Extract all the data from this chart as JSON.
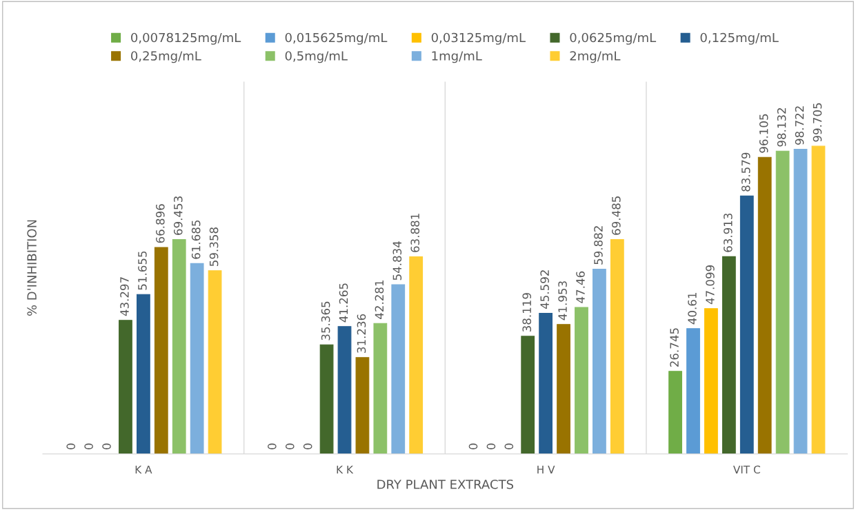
{
  "chart_data": {
    "type": "bar",
    "xlabel": "DRY PLANT EXTRACTS",
    "ylabel": "% D'INHIBITION",
    "categories": [
      "K A",
      "K K",
      "H V",
      "VIT C"
    ],
    "series": [
      {
        "name": "0,0078125mg/mL",
        "color": "#70ad47",
        "values": [
          0,
          0,
          0,
          26.745
        ]
      },
      {
        "name": "0,015625mg/mL",
        "color": "#5b9bd5",
        "values": [
          0,
          0,
          0,
          40.61
        ]
      },
      {
        "name": "0,03125mg/mL",
        "color": "#ffc000",
        "values": [
          0,
          0,
          0,
          47.099
        ]
      },
      {
        "name": "0,0625mg/mL",
        "color": "#43682b",
        "values": [
          43.297,
          35.365,
          38.119,
          63.913
        ]
      },
      {
        "name": "0,125mg/mL",
        "color": "#255e91",
        "values": [
          51.655,
          41.265,
          45.592,
          83.579
        ]
      },
      {
        "name": "0,25mg/mL",
        "color": "#997300",
        "values": [
          66.896,
          31.236,
          41.953,
          96.105
        ]
      },
      {
        "name": "0,5mg/mL",
        "color": "#8cc168",
        "values": [
          69.453,
          42.281,
          47.46,
          98.132
        ]
      },
      {
        "name": "1mg/mL",
        "color": "#7cafdd",
        "values": [
          61.685,
          54.834,
          59.882,
          98.722
        ]
      },
      {
        "name": "2mg/mL",
        "color": "#ffcd33",
        "values": [
          59.358,
          63.881,
          69.485,
          99.705
        ]
      }
    ],
    "data_labels": true,
    "grid": "x",
    "legend": "top"
  }
}
